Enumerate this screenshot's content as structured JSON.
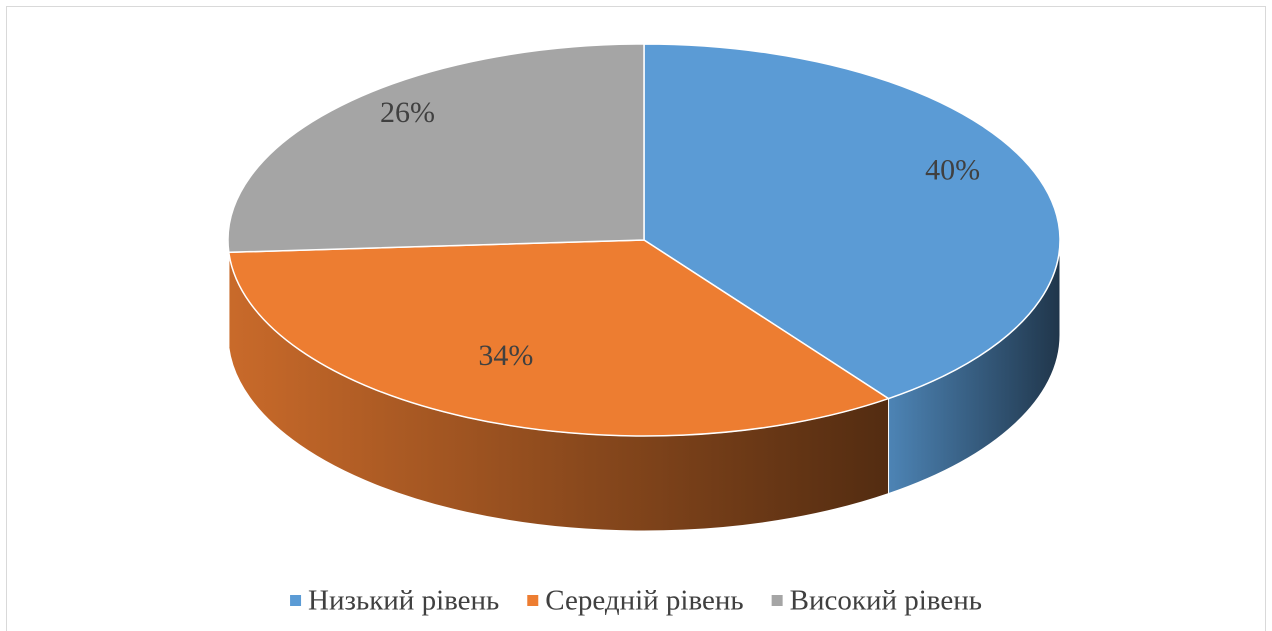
{
  "chart_data": {
    "type": "pie",
    "categories": [
      "Низький рівень",
      "Середній рівень",
      "Високий рівень"
    ],
    "values": [
      40,
      34,
      26
    ],
    "value_labels": [
      "40%",
      "34%",
      "26%"
    ],
    "colors": [
      "#5b9bd5",
      "#ed7d31",
      "#a5a5a5"
    ],
    "legend": "bottom"
  }
}
